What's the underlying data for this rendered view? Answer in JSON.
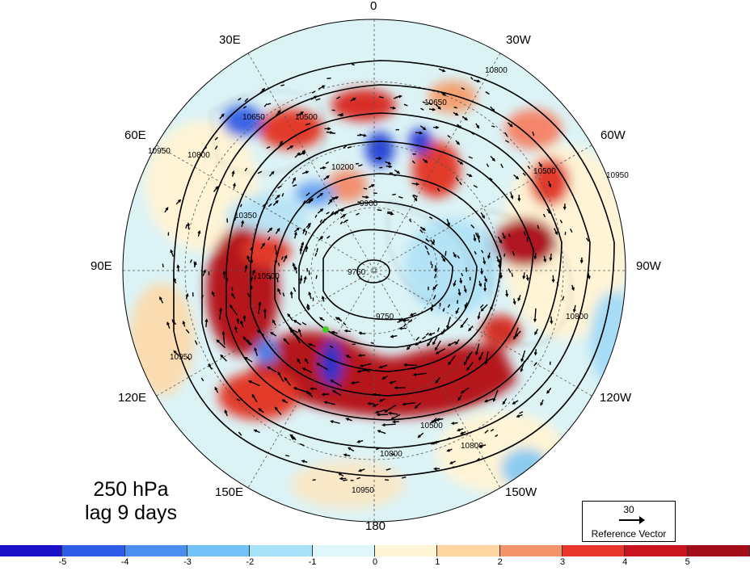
{
  "title": {
    "level": "250 hPa",
    "lag": "lag 9 days"
  },
  "longitude_labels": {
    "lon_0": "0",
    "lon_30w": "30W",
    "lon_60w": "60W",
    "lon_90w": "90W",
    "lon_120w": "120W",
    "lon_150w": "150W",
    "lon_180": "180",
    "lon_150e": "150E",
    "lon_120e": "120E",
    "lon_90e": "90E",
    "lon_60e": "60E",
    "lon_30e": "30E"
  },
  "contour_labels": [
    "10950",
    "10800",
    "10650",
    "10500",
    "10350",
    "10200",
    "10050",
    "9900",
    "9750"
  ],
  "reference_vector": {
    "magnitude": "30",
    "caption": "Reference Vector"
  },
  "colorbar": {
    "ticks": [
      "-5",
      "-4",
      "-3",
      "-2",
      "-1",
      "0",
      "1",
      "2",
      "3",
      "4",
      "5"
    ],
    "colors": [
      "#1a10c8",
      "#2e5ce8",
      "#4a8ff0",
      "#73c2f5",
      "#a6e3fa",
      "#dff7fb",
      "#fff6d8",
      "#fdd5a0",
      "#f4946a",
      "#e8372a",
      "#c8141c",
      "#a30d1a"
    ]
  },
  "marker_color": "#39d21e"
}
